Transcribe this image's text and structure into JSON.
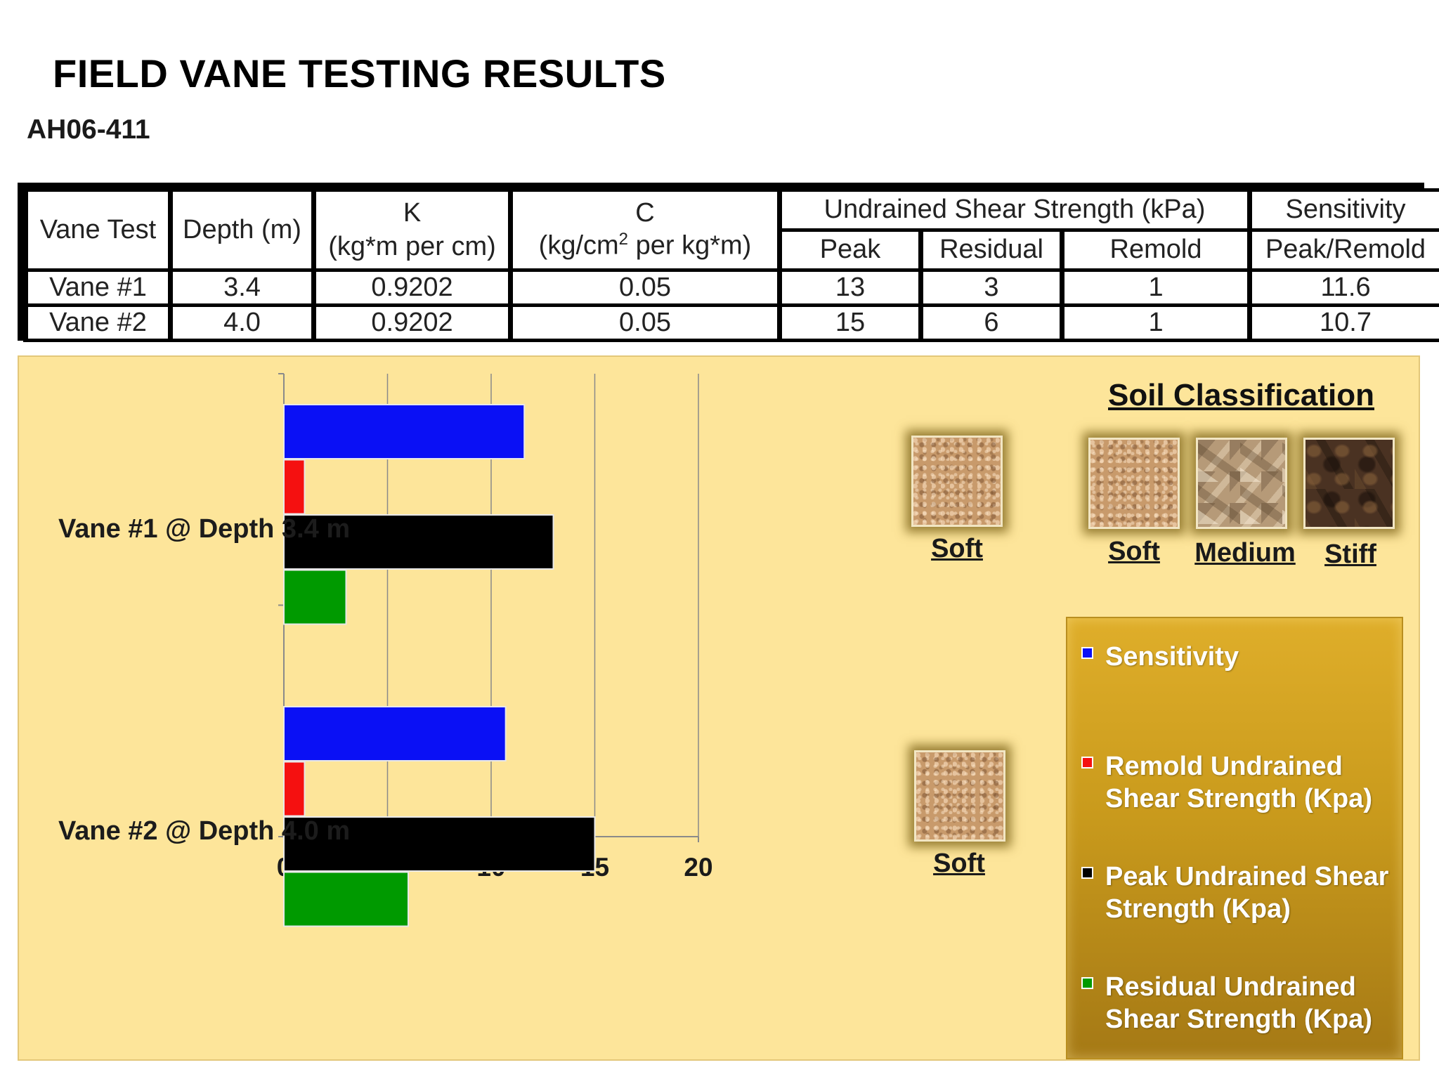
{
  "title": "FIELD VANE TESTING RESULTS",
  "subtitle": "AH06-411",
  "table": {
    "headers": {
      "vane_test": "Vane Test",
      "depth": "Depth (m)",
      "k_line1": "K",
      "k_line2": "(kg*m per cm)",
      "c_line1": "C",
      "c_line2a": "(kg/cm",
      "c_exp": "2",
      "c_line2b": " per kg*m)",
      "uss": "Undrained Shear Strength (kPa)",
      "peak": "Peak",
      "residual": "Residual",
      "remold": "Remold",
      "sensitivity": "Sensitivity",
      "peak_remold": "Peak/Remold"
    },
    "rows": [
      {
        "vane": "Vane #1",
        "depth": "3.4",
        "k": "0.9202",
        "c": "0.05",
        "peak": "13",
        "residual": "3",
        "remold": "1",
        "sensitivity": "11.6"
      },
      {
        "vane": "Vane #2",
        "depth": "4.0",
        "k": "0.9202",
        "c": "0.05",
        "peak": "15",
        "residual": "6",
        "remold": "1",
        "sensitivity": "10.7"
      }
    ]
  },
  "chart_data": {
    "type": "bar",
    "orientation": "horizontal",
    "categories": [
      "Vane #1 @ Depth 3.4 m",
      "Vane #2 @ Depth 4.0 m"
    ],
    "series": [
      {
        "name": "Sensitivity",
        "color": "#0a10f5",
        "values": [
          11.6,
          10.7
        ]
      },
      {
        "name": "Remold Undrained Shear Strength (Kpa)",
        "color": "#f51010",
        "values": [
          1,
          1
        ]
      },
      {
        "name": "Peak Undrained Shear Strength (Kpa)",
        "color": "#000000",
        "values": [
          13,
          15
        ]
      },
      {
        "name": "Residual Undrained Shear Strength (Kpa)",
        "color": "#009a00",
        "values": [
          3,
          6
        ]
      }
    ],
    "xlim": [
      0,
      20
    ],
    "xticks": [
      "0",
      "5",
      "10",
      "15",
      "20"
    ],
    "grid": "vertical",
    "legend": "right",
    "background": "#fde59a"
  },
  "soil_classification": {
    "title": "Soil Classification",
    "scale": [
      {
        "label": "Soft",
        "texture": "sand"
      },
      {
        "label": "Medium",
        "texture": "clay-medium"
      },
      {
        "label": "Stiff",
        "texture": "clay-stiff"
      }
    ],
    "vane_results": [
      {
        "label": "Soft",
        "texture": "sand"
      },
      {
        "label": "Soft",
        "texture": "sand"
      }
    ]
  }
}
